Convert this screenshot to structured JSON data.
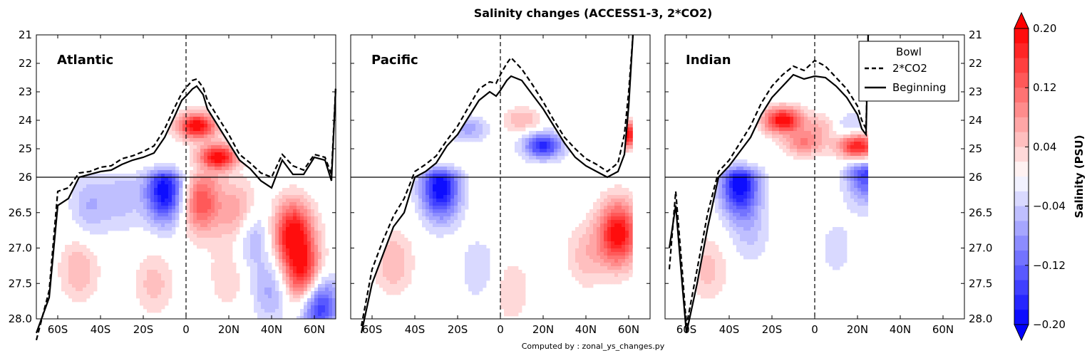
{
  "figure": {
    "title": "Salinity changes (ACCESS1-3, 2*CO2)",
    "footer": "Computed by : zonal_ys_changes.py"
  },
  "chart_data": {
    "type": "heatmap",
    "xlabel": "",
    "ylabel": "",
    "x_range": [
      -70,
      70
    ],
    "x_ticks": [
      -60,
      -40,
      -20,
      0,
      20,
      40,
      60
    ],
    "x_tick_labels": [
      "60S",
      "40S",
      "20S",
      "0",
      "20N",
      "40N",
      "60N"
    ],
    "y_upper_range": [
      21,
      26
    ],
    "y_upper_ticks": [
      "21",
      "22",
      "23",
      "24",
      "25",
      "26"
    ],
    "y_lower_range": [
      26,
      28
    ],
    "y_lower_ticks": [
      "26.5",
      "27.0",
      "27.5",
      "28.0"
    ],
    "legend": {
      "title": "Bowl",
      "entries": [
        {
          "label": "2*CO2",
          "style": "dashed",
          "color": "#000000"
        },
        {
          "label": "Beginning",
          "style": "solid",
          "color": "#000000"
        }
      ],
      "placement": "top-right of Indian panel"
    },
    "colorbar": {
      "label": "Salinity (PSU)",
      "min": -0.2,
      "max": 0.2,
      "extend": "both",
      "tick_values": [
        0.2,
        0.12,
        0.04,
        -0.04,
        -0.12,
        -0.2
      ],
      "tick_labels": [
        "0.20",
        "0.12",
        "0.04",
        "−0.04",
        "−0.12",
        "−0.20"
      ],
      "levels": 20,
      "cmap": "bwr",
      "low_color": "#0000ff",
      "mid_color": "#ffffff",
      "high_color": "#ff0000"
    },
    "panels": [
      {
        "name": "Atlantic",
        "bowl_beginning": {
          "lat": [
            -70,
            -64,
            -60,
            -55,
            -50,
            -45,
            -40,
            -35,
            -30,
            -25,
            -20,
            -15,
            -10,
            -5,
            -2,
            0,
            3,
            5,
            8,
            10,
            15,
            20,
            25,
            30,
            35,
            40,
            45,
            50,
            55,
            60,
            65,
            68,
            70
          ],
          "sigma": [
            28.2,
            27.7,
            26.4,
            26.3,
            26.0,
            25.9,
            25.8,
            25.75,
            25.55,
            25.4,
            25.3,
            25.15,
            24.6,
            23.8,
            23.3,
            23.15,
            22.9,
            22.8,
            23.1,
            23.6,
            24.2,
            24.8,
            25.4,
            25.7,
            26.05,
            26.15,
            25.4,
            25.9,
            25.9,
            25.3,
            25.4,
            26.05,
            22.9
          ]
        },
        "bowl_co2": {
          "lat": [
            -70,
            -64,
            -60,
            -55,
            -50,
            -45,
            -40,
            -35,
            -30,
            -25,
            -20,
            -15,
            -10,
            -5,
            -2,
            0,
            3,
            5,
            8,
            10,
            15,
            20,
            25,
            30,
            35,
            40,
            45,
            50,
            55,
            60,
            65,
            68,
            70
          ],
          "sigma": [
            28.3,
            27.6,
            26.2,
            26.15,
            25.85,
            25.8,
            25.65,
            25.6,
            25.35,
            25.25,
            25.1,
            24.9,
            24.3,
            23.5,
            23.05,
            22.85,
            22.6,
            22.55,
            22.85,
            23.3,
            23.9,
            24.5,
            25.2,
            25.5,
            25.85,
            26.0,
            25.2,
            25.6,
            25.75,
            25.2,
            25.3,
            25.9,
            22.8
          ]
        },
        "anomalies": [
          {
            "lat": -10,
            "sigma": 26.2,
            "value": -0.2
          },
          {
            "lat": -45,
            "sigma": 26.4,
            "value": -0.06
          },
          {
            "lat": -30,
            "sigma": 26.3,
            "value": -0.05
          },
          {
            "lat": 5,
            "sigma": 24.2,
            "value": 0.2
          },
          {
            "lat": 15,
            "sigma": 25.3,
            "value": 0.2
          },
          {
            "lat": 7,
            "sigma": 26.35,
            "value": 0.14
          },
          {
            "lat": 25,
            "sigma": 26.55,
            "value": 0.1
          },
          {
            "lat": 30,
            "sigma": 26.8,
            "value": -0.09
          },
          {
            "lat": 50,
            "sigma": 26.8,
            "value": 0.2
          },
          {
            "lat": 55,
            "sigma": 27.4,
            "value": 0.18
          },
          {
            "lat": 62,
            "sigma": 27.8,
            "value": -0.18
          },
          {
            "lat": -50,
            "sigma": 27.3,
            "value": 0.06
          },
          {
            "lat": -15,
            "sigma": 27.5,
            "value": 0.05
          },
          {
            "lat": 20,
            "sigma": 27.4,
            "value": 0.04
          },
          {
            "lat": 40,
            "sigma": 27.6,
            "value": -0.07
          }
        ]
      },
      {
        "name": "Pacific",
        "bowl_beginning": {
          "lat": [
            -65,
            -60,
            -55,
            -50,
            -45,
            -40,
            -35,
            -30,
            -25,
            -20,
            -15,
            -10,
            -5,
            -2,
            0,
            3,
            5,
            10,
            15,
            20,
            25,
            30,
            35,
            40,
            45,
            50,
            55,
            58,
            60,
            62
          ],
          "sigma": [
            28.2,
            27.5,
            27.1,
            26.7,
            26.5,
            26.0,
            25.8,
            25.5,
            24.9,
            24.5,
            23.9,
            23.3,
            23.0,
            23.15,
            22.95,
            22.6,
            22.45,
            22.6,
            23.1,
            23.6,
            24.2,
            24.8,
            25.3,
            25.6,
            25.8,
            26.0,
            25.8,
            25.2,
            23.5,
            21.0
          ]
        },
        "bowl_co2": {
          "lat": [
            -65,
            -60,
            -55,
            -50,
            -45,
            -40,
            -35,
            -30,
            -25,
            -20,
            -15,
            -10,
            -5,
            -2,
            0,
            3,
            5,
            10,
            15,
            20,
            25,
            30,
            35,
            40,
            45,
            50,
            55,
            58,
            60,
            62
          ],
          "sigma": [
            28.1,
            27.3,
            26.9,
            26.55,
            26.3,
            25.8,
            25.55,
            25.25,
            24.7,
            24.2,
            23.55,
            22.9,
            22.65,
            22.7,
            22.4,
            22.0,
            21.8,
            22.2,
            22.75,
            23.35,
            24.0,
            24.6,
            25.0,
            25.35,
            25.55,
            25.8,
            25.5,
            24.5,
            23.0,
            21.0
          ]
        },
        "anomalies": [
          {
            "lat": -28,
            "sigma": 26.15,
            "value": -0.2
          },
          {
            "lat": -15,
            "sigma": 24.3,
            "value": -0.07
          },
          {
            "lat": 20,
            "sigma": 24.9,
            "value": -0.17
          },
          {
            "lat": 10,
            "sigma": 24.0,
            "value": 0.06
          },
          {
            "lat": 55,
            "sigma": 26.8,
            "value": 0.2
          },
          {
            "lat": 58,
            "sigma": 24.5,
            "value": 0.2
          },
          {
            "lat": 40,
            "sigma": 27.1,
            "value": 0.05
          },
          {
            "lat": -10,
            "sigma": 27.3,
            "value": -0.04
          },
          {
            "lat": -50,
            "sigma": 27.2,
            "value": 0.06
          },
          {
            "lat": 5,
            "sigma": 27.6,
            "value": 0.04
          }
        ]
      },
      {
        "name": "Indian",
        "bowl_beginning": {
          "lat": [
            -68,
            -65,
            -62,
            -60,
            -55,
            -50,
            -45,
            -40,
            -35,
            -30,
            -25,
            -20,
            -15,
            -10,
            -5,
            0,
            5,
            10,
            15,
            20,
            22,
            24,
            25
          ],
          "sigma": [
            27.0,
            26.4,
            27.5,
            28.2,
            27.5,
            26.7,
            26.0,
            25.6,
            25.1,
            24.6,
            23.8,
            23.2,
            22.8,
            22.4,
            22.55,
            22.45,
            22.5,
            22.8,
            23.2,
            23.8,
            24.3,
            24.5,
            21.0
          ]
        },
        "bowl_co2": {
          "lat": [
            -68,
            -65,
            -62,
            -60,
            -55,
            -50,
            -45,
            -40,
            -35,
            -30,
            -25,
            -20,
            -15,
            -10,
            -5,
            0,
            5,
            10,
            15,
            20,
            22,
            24,
            25
          ],
          "sigma": [
            27.3,
            26.2,
            27.3,
            28.1,
            27.3,
            26.5,
            25.8,
            25.4,
            24.8,
            24.2,
            23.4,
            22.8,
            22.4,
            22.1,
            22.25,
            21.9,
            22.1,
            22.5,
            22.9,
            23.5,
            24.0,
            24.3,
            21.0
          ]
        },
        "anomalies": [
          {
            "lat": -35,
            "sigma": 26.1,
            "value": -0.2
          },
          {
            "lat": -15,
            "sigma": 24.0,
            "value": 0.2
          },
          {
            "lat": -5,
            "sigma": 24.8,
            "value": 0.1
          },
          {
            "lat": 5,
            "sigma": 24.2,
            "value": 0.06
          },
          {
            "lat": 15,
            "sigma": 24.2,
            "value": -0.06
          },
          {
            "lat": 20,
            "sigma": 24.9,
            "value": 0.18
          },
          {
            "lat": 24,
            "sigma": 25.9,
            "value": -0.15
          },
          {
            "lat": -50,
            "sigma": 27.3,
            "value": 0.05
          },
          {
            "lat": -30,
            "sigma": 26.8,
            "value": -0.04
          },
          {
            "lat": 10,
            "sigma": 27.0,
            "value": -0.03
          }
        ]
      }
    ]
  }
}
